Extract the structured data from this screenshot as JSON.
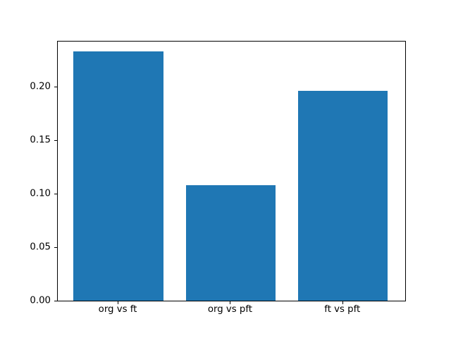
{
  "chart_data": {
    "type": "bar",
    "title": "",
    "xlabel": "",
    "ylabel": "",
    "categories": [
      "org vs ft",
      "org vs pft",
      "ft vs pft"
    ],
    "values": [
      0.233,
      0.108,
      0.196
    ],
    "bar_color": "#1f77b4",
    "bar_width_units": 0.8,
    "xlim": [
      -0.54,
      2.56
    ],
    "ylim": [
      0,
      0.243
    ],
    "ytick_labels": [
      "0.00",
      "0.05",
      "0.10",
      "0.15",
      "0.20"
    ],
    "ytick_values": [
      0.0,
      0.05,
      0.1,
      0.15,
      0.2
    ],
    "grid": false,
    "legend": null,
    "spine_color": "#000000",
    "background": "#ffffff"
  }
}
